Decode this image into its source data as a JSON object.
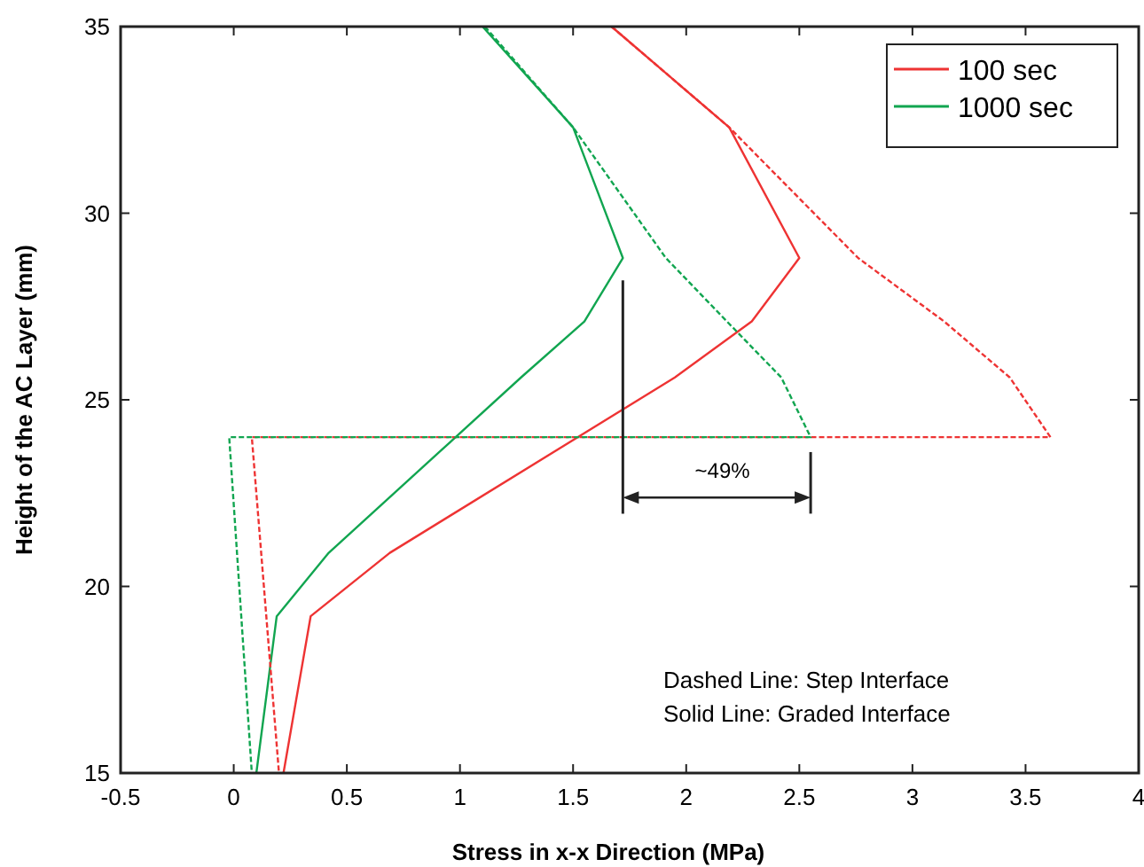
{
  "chart_data": {
    "type": "line",
    "xlabel": "Stress in x-x Direction (MPa)",
    "ylabel": "Height of the AC Layer (mm)",
    "xlim": [
      -0.5,
      4
    ],
    "ylim": [
      15,
      35
    ],
    "xticks": [
      -0.5,
      0,
      0.5,
      1,
      1.5,
      2,
      2.5,
      3,
      3.5,
      4
    ],
    "yticks": [
      15,
      20,
      25,
      30,
      35
    ],
    "grid": false,
    "legend": "top right",
    "series": [
      {
        "name": "100 sec",
        "color": "#ee3333",
        "line_style": "solid",
        "x": [
          1.67,
          2.19,
          2.5,
          2.29,
          1.95,
          0.69,
          0.34,
          0.22
        ],
        "values": [
          35,
          32.3,
          28.8,
          27.1,
          25.6,
          20.9,
          19.2,
          15
        ]
      },
      {
        "name": "1000 sec",
        "color": "#11a550",
        "line_style": "solid",
        "x": [
          1.1,
          1.5,
          1.72,
          1.55,
          1.27,
          0.42,
          0.19,
          0.1
        ],
        "values": [
          35,
          32.3,
          28.8,
          27.1,
          25.6,
          20.9,
          19.2,
          15
        ]
      },
      {
        "color": "#ee3333",
        "line_style": "dashed",
        "x": [
          1.67,
          2.19,
          2.76,
          3.14,
          3.43,
          3.61,
          0.08,
          0.2
        ],
        "values": [
          35,
          32.3,
          28.8,
          27.1,
          25.6,
          24,
          24,
          15
        ]
      },
      {
        "color": "#11a550",
        "line_style": "dashed",
        "x": [
          1.11,
          1.5,
          1.91,
          2.18,
          2.42,
          2.55,
          -0.02,
          0.08
        ],
        "values": [
          35,
          32.3,
          28.8,
          27.1,
          25.6,
          24,
          24,
          15
        ]
      }
    ],
    "annotations": [
      "~49%",
      "Dashed Line: Step Interface",
      "Solid Line: Graded Interface"
    ]
  }
}
